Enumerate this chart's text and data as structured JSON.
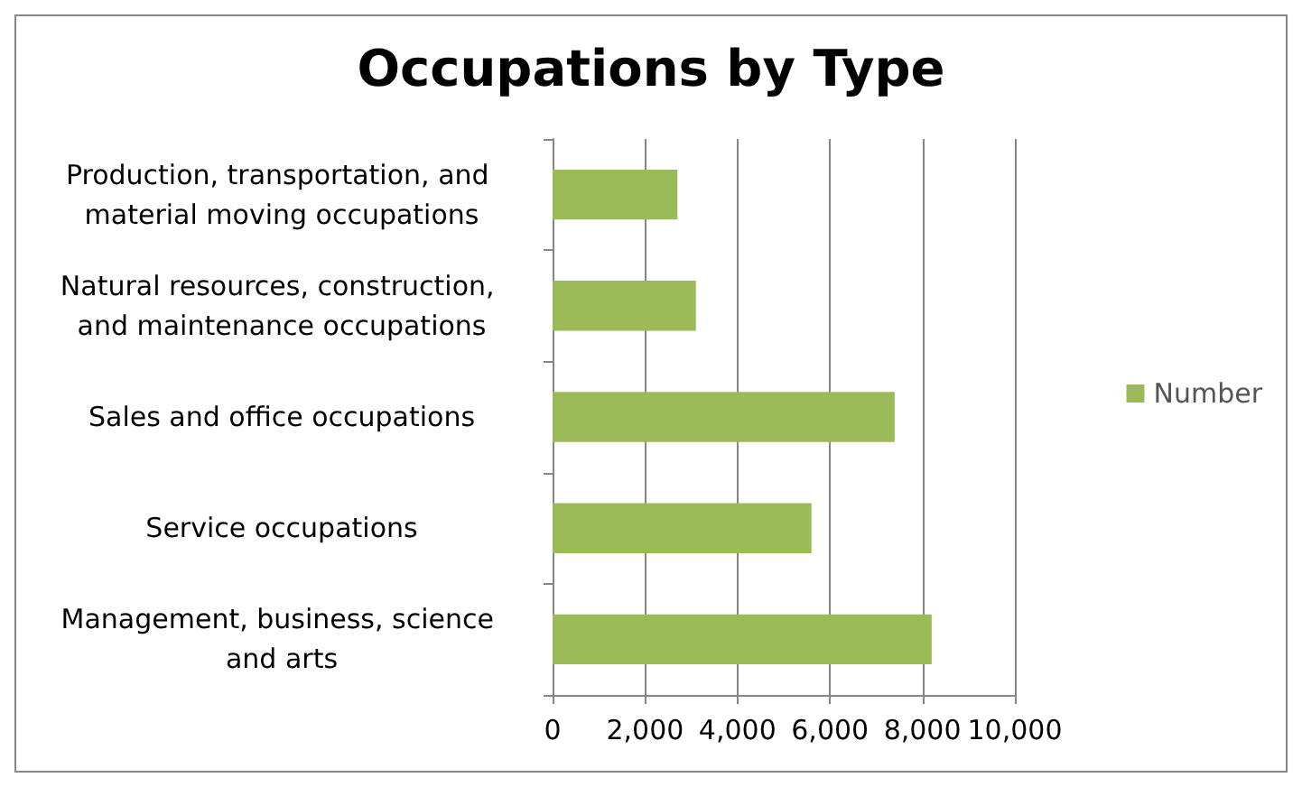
{
  "chart_data": {
    "type": "bar",
    "orientation": "horizontal",
    "title": "Occupations by Type",
    "categories": [
      "Production, transportation, and material moving occupations",
      "Natural resources, construction, and maintenance occupations",
      "Sales and office occupations",
      "Service occupations",
      "Management, business, science and arts"
    ],
    "series": [
      {
        "name": "Number",
        "color": "#9bbb59",
        "values": [
          2700,
          3100,
          7400,
          5600,
          8200
        ]
      }
    ],
    "xlim": [
      0,
      10000
    ],
    "xticks": [
      {
        "value": 0,
        "label": "0"
      },
      {
        "value": 2000,
        "label": "2,000"
      },
      {
        "value": 4000,
        "label": "4,000"
      },
      {
        "value": 6000,
        "label": "6,000"
      },
      {
        "value": 8000,
        "label": "8,000"
      },
      {
        "value": 10000,
        "label": "10,000"
      }
    ],
    "grid": "x",
    "legend": "right"
  }
}
